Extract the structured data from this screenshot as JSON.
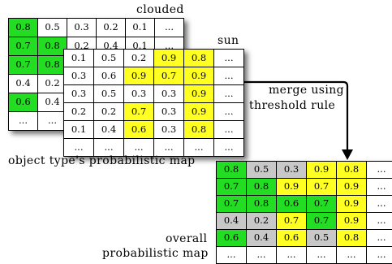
{
  "labels": {
    "clouded": "clouded",
    "sun": "sun",
    "object_map": "object type's probabilistic map",
    "merge": "merge using",
    "threshold": "threshold rule",
    "overall": "overall",
    "probabilistic_map": "probabilistic map"
  },
  "colors": {
    "g": "#22dd22",
    "y": "#ffff22",
    "s": "#c8c8c8",
    "w": "#ffffff"
  },
  "grids": {
    "clouded": {
      "cells": [
        [
          "0.8",
          "0.5",
          "0.3",
          "0.2",
          "0.1",
          "..."
        ],
        [
          "0.7",
          "0.8",
          "0.2",
          "0.4",
          "0.1",
          "..."
        ],
        [
          "0.7",
          "0.8",
          "",
          "",
          "",
          ""
        ],
        [
          "0.4",
          "0.2",
          "",
          "",
          "",
          ""
        ],
        [
          "0.6",
          "0.4",
          "",
          "",
          "",
          ""
        ],
        [
          "...",
          "...",
          "",
          "",
          "",
          ""
        ]
      ],
      "fills": [
        [
          "g",
          "w",
          "w",
          "w",
          "w",
          "w"
        ],
        [
          "g",
          "g",
          "w",
          "w",
          "w",
          "w"
        ],
        [
          "g",
          "g",
          "w",
          "w",
          "w",
          "w"
        ],
        [
          "w",
          "w",
          "w",
          "w",
          "w",
          "w"
        ],
        [
          "g",
          "w",
          "w",
          "w",
          "w",
          "w"
        ],
        [
          "w",
          "w",
          "w",
          "w",
          "w",
          "w"
        ]
      ]
    },
    "sun": {
      "cells": [
        [
          "0.1",
          "0.5",
          "0.2",
          "0.9",
          "0.8",
          "..."
        ],
        [
          "0.3",
          "0.6",
          "0.9",
          "0.7",
          "0.9",
          "..."
        ],
        [
          "0.3",
          "0.5",
          "0.3",
          "0.3",
          "0.9",
          "..."
        ],
        [
          "0.2",
          "0.2",
          "0.7",
          "0.3",
          "0.9",
          "..."
        ],
        [
          "0.1",
          "0.4",
          "0.6",
          "0.3",
          "0.8",
          "..."
        ],
        [
          "...",
          "...",
          "...",
          "...",
          "...",
          "..."
        ]
      ],
      "fills": [
        [
          "w",
          "w",
          "w",
          "y",
          "y",
          "w"
        ],
        [
          "w",
          "w",
          "y",
          "y",
          "y",
          "w"
        ],
        [
          "w",
          "w",
          "w",
          "w",
          "y",
          "w"
        ],
        [
          "w",
          "w",
          "y",
          "w",
          "y",
          "w"
        ],
        [
          "w",
          "w",
          "y",
          "w",
          "y",
          "w"
        ],
        [
          "w",
          "w",
          "w",
          "w",
          "w",
          "w"
        ]
      ]
    },
    "overall": {
      "cells": [
        [
          "0.8",
          "0.5",
          "0.3",
          "0.9",
          "0.8",
          "..."
        ],
        [
          "0.7",
          "0.8",
          "0.9",
          "0.7",
          "0.9",
          "..."
        ],
        [
          "0.7",
          "0.8",
          "0.6",
          "0.7",
          "0.9",
          "..."
        ],
        [
          "0.4",
          "0.2",
          "0.7",
          "0.7",
          "0.9",
          "..."
        ],
        [
          "0.6",
          "0.4",
          "0.6",
          "0.5",
          "0.8",
          "..."
        ],
        [
          "...",
          "...",
          "...",
          "...",
          "...",
          "..."
        ]
      ],
      "fills": [
        [
          "g",
          "s",
          "s",
          "y",
          "y",
          "w"
        ],
        [
          "g",
          "g",
          "y",
          "y",
          "y",
          "w"
        ],
        [
          "g",
          "g",
          "g",
          "g",
          "y",
          "w"
        ],
        [
          "s",
          "s",
          "y",
          "g",
          "y",
          "w"
        ],
        [
          "g",
          "s",
          "y",
          "s",
          "y",
          "w"
        ],
        [
          "w",
          "w",
          "w",
          "w",
          "w",
          "w"
        ]
      ]
    }
  }
}
